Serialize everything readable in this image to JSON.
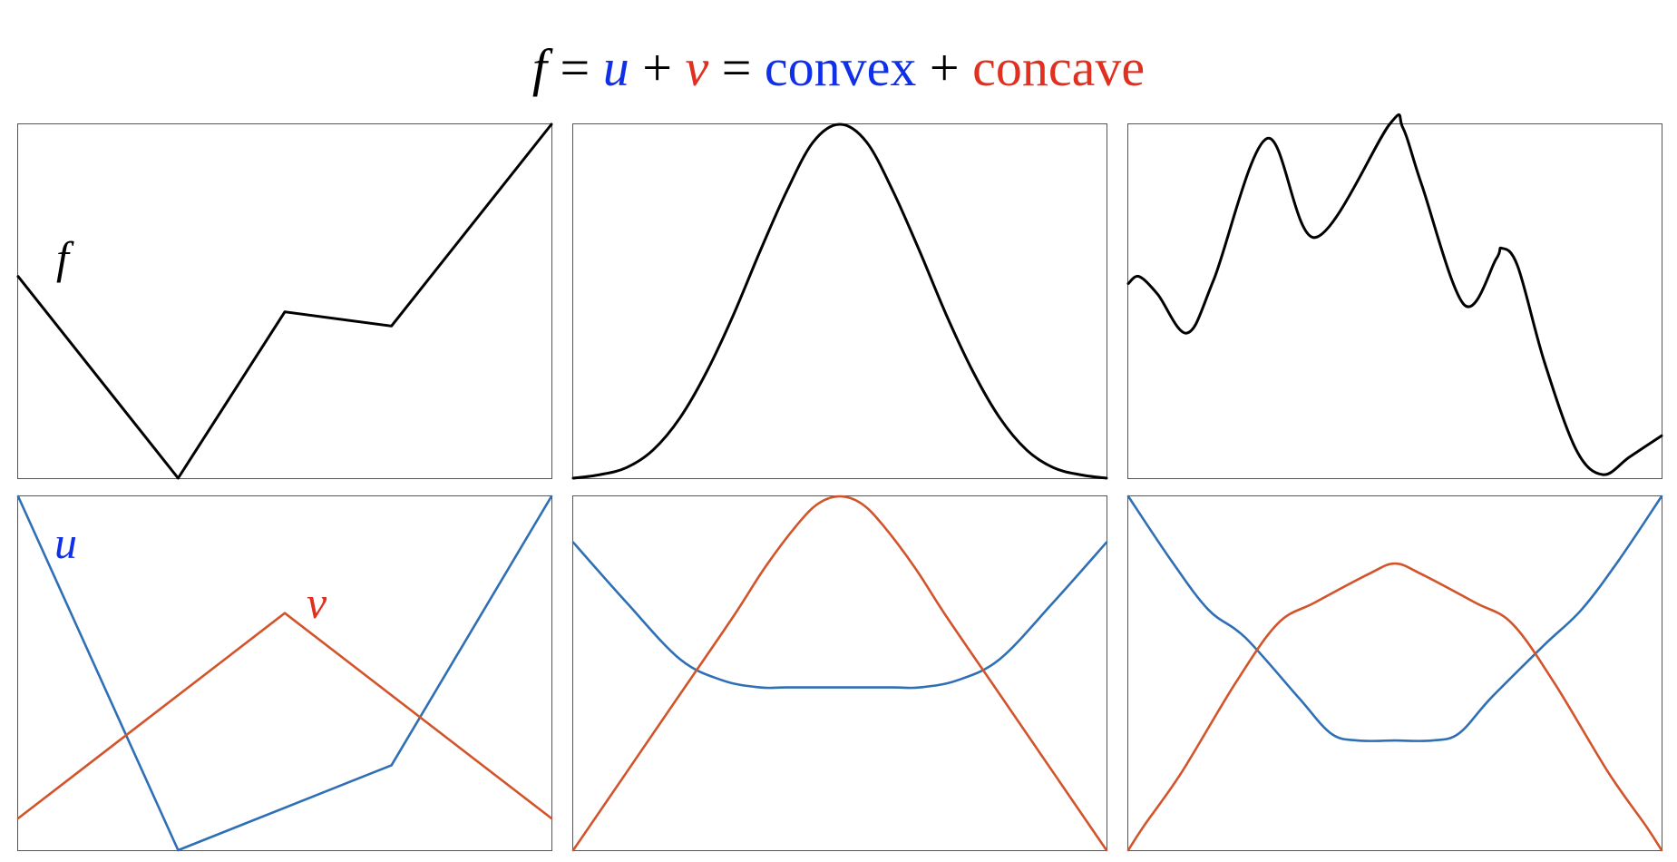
{
  "title": {
    "f": "f",
    "eq1": "=",
    "u": "u",
    "plus1": "+",
    "v": "v",
    "eq2": "=",
    "convex": "convex",
    "plus2": "+",
    "concave": "concave"
  },
  "colors": {
    "f_line": "#000000",
    "u_line": "#2E6FB5",
    "v_line": "#D2542A",
    "u_text": "#1030E8",
    "v_text": "#E03020",
    "frame": "#555555"
  },
  "panel_labels": {
    "f": "f",
    "u": "u",
    "v": "v"
  },
  "chart_data": [
    {
      "type": "line",
      "panel": "top-left",
      "xlim": [
        0,
        10
      ],
      "ylim": [
        0,
        10
      ],
      "grid": false,
      "series": [
        {
          "name": "f",
          "x": [
            0,
            3,
            5,
            7,
            10
          ],
          "y": [
            5.7,
            0,
            4.7,
            4.3,
            10
          ]
        }
      ]
    },
    {
      "type": "line",
      "panel": "top-middle",
      "xlim": [
        0,
        10
      ],
      "ylim": [
        0,
        10
      ],
      "grid": false,
      "series": [
        {
          "name": "f",
          "x": [
            0,
            0.5,
            1,
            1.5,
            2,
            2.5,
            3,
            3.5,
            4,
            4.5,
            5,
            5.5,
            6,
            6.5,
            7,
            7.5,
            8,
            8.5,
            9,
            9.5,
            10
          ],
          "y": [
            0,
            0.1,
            0.3,
            0.8,
            1.7,
            3.0,
            4.6,
            6.4,
            8.1,
            9.5,
            10,
            9.5,
            8.1,
            6.4,
            4.6,
            3.0,
            1.7,
            0.8,
            0.3,
            0.1,
            0
          ]
        }
      ]
    },
    {
      "type": "line",
      "panel": "top-right",
      "xlim": [
        0,
        10
      ],
      "ylim": [
        0,
        10
      ],
      "grid": false,
      "series": [
        {
          "name": "f",
          "x": [
            0,
            0.2,
            0.55,
            1.1,
            1.6,
            2.6,
            3.5,
            4.9,
            5.15,
            5.5,
            6.3,
            6.9,
            7.0,
            7.3,
            7.8,
            8.4,
            8.9,
            9.4,
            10
          ],
          "y": [
            5.5,
            5.7,
            5.2,
            4.1,
            5.6,
            9.6,
            6.8,
            10,
            9.9,
            8.3,
            4.9,
            6.2,
            6.5,
            6.0,
            3.3,
            0.8,
            0.1,
            0.6,
            1.2
          ]
        }
      ]
    },
    {
      "type": "line",
      "panel": "bottom-left",
      "xlim": [
        0,
        10
      ],
      "ylim": [
        0,
        10
      ],
      "grid": false,
      "series": [
        {
          "name": "u",
          "x": [
            0,
            3,
            7,
            10
          ],
          "y": [
            10,
            0,
            2.4,
            10
          ]
        },
        {
          "name": "v",
          "x": [
            0,
            5,
            10
          ],
          "y": [
            0.9,
            6.7,
            0.9
          ]
        }
      ]
    },
    {
      "type": "line",
      "panel": "bottom-middle",
      "xlim": [
        0,
        10
      ],
      "ylim": [
        0,
        10
      ],
      "grid": false,
      "series": [
        {
          "name": "u",
          "x": [
            0,
            1,
            2,
            2.8,
            3.5,
            4,
            5,
            6,
            6.5,
            7.2,
            8,
            9,
            10
          ],
          "y": [
            8.7,
            7.0,
            5.4,
            4.8,
            4.6,
            4.6,
            4.6,
            4.6,
            4.6,
            4.8,
            5.4,
            7.0,
            8.7
          ]
        },
        {
          "name": "v",
          "x": [
            0,
            1,
            2,
            3,
            3.6,
            4.2,
            4.6,
            5,
            5.4,
            5.8,
            6.4,
            7,
            8,
            9,
            10
          ],
          "y": [
            0,
            2.2,
            4.4,
            6.6,
            8.0,
            9.2,
            9.8,
            10,
            9.8,
            9.2,
            8.0,
            6.6,
            4.4,
            2.2,
            0
          ]
        }
      ]
    },
    {
      "type": "line",
      "panel": "bottom-right",
      "xlim": [
        0,
        10
      ],
      "ylim": [
        0,
        10
      ],
      "grid": false,
      "series": [
        {
          "name": "u",
          "x": [
            0,
            0.8,
            1.5,
            2.2,
            3.2,
            3.8,
            4.3,
            5,
            5.7,
            6.2,
            6.8,
            7.8,
            8.5,
            9.2,
            10
          ],
          "y": [
            10,
            8.2,
            6.8,
            6.0,
            4.3,
            3.3,
            3.1,
            3.1,
            3.1,
            3.3,
            4.3,
            5.8,
            6.8,
            8.2,
            10
          ]
        },
        {
          "name": "v",
          "x": [
            0,
            0.3,
            1,
            2,
            2.8,
            3.5,
            4.5,
            5,
            5.5,
            6.5,
            7.2,
            8,
            9,
            9.7,
            10
          ],
          "y": [
            0,
            0.7,
            2.2,
            4.7,
            6.4,
            7.0,
            7.8,
            8.1,
            7.8,
            7.0,
            6.4,
            4.7,
            2.2,
            0.7,
            0
          ]
        }
      ]
    }
  ]
}
